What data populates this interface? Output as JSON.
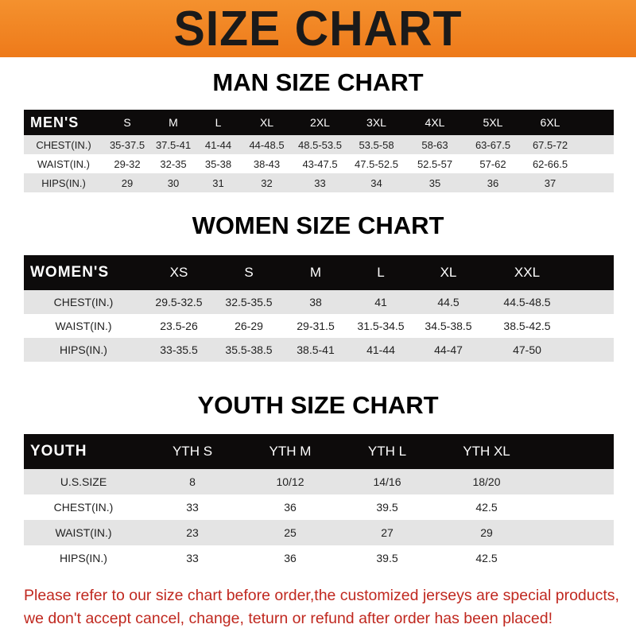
{
  "title": "SIZE CHART",
  "colors": {
    "banner": "#f07f1e",
    "header_row": "#0d0b0b",
    "notice": "#c0281f"
  },
  "men": {
    "title": "MAN SIZE CHART",
    "header": [
      "MEN'S",
      "S",
      "M",
      "L",
      "XL",
      "2XL",
      "3XL",
      "4XL",
      "5XL",
      "6XL"
    ],
    "rows": [
      [
        "CHEST(IN.)",
        "35-37.5",
        "37.5-41",
        "41-44",
        "44-48.5",
        "48.5-53.5",
        "53.5-58",
        "58-63",
        "63-67.5",
        "67.5-72"
      ],
      [
        "WAIST(IN.)",
        "29-32",
        "32-35",
        "35-38",
        "38-43",
        "43-47.5",
        "47.5-52.5",
        "52.5-57",
        "57-62",
        "62-66.5"
      ],
      [
        "HIPS(IN.)",
        "29",
        "30",
        "31",
        "32",
        "33",
        "34",
        "35",
        "36",
        "37"
      ]
    ]
  },
  "women": {
    "title": "WOMEN SIZE CHART",
    "header": [
      "WOMEN'S",
      "XS",
      "S",
      "M",
      "L",
      "XL",
      "XXL"
    ],
    "rows": [
      [
        "CHEST(IN.)",
        "29.5-32.5",
        "32.5-35.5",
        "38",
        "41",
        "44.5",
        "44.5-48.5"
      ],
      [
        "WAIST(IN.)",
        "23.5-26",
        "26-29",
        "29-31.5",
        "31.5-34.5",
        "34.5-38.5",
        "38.5-42.5"
      ],
      [
        "HIPS(IN.)",
        "33-35.5",
        "35.5-38.5",
        "38.5-41",
        "41-44",
        "44-47",
        "47-50"
      ]
    ]
  },
  "youth": {
    "title": "YOUTH SIZE CHART",
    "header": [
      "YOUTH",
      "YTH S",
      "YTH M",
      "YTH L",
      "YTH XL"
    ],
    "rows": [
      [
        "U.S.SIZE",
        "8",
        "10/12",
        "14/16",
        "18/20"
      ],
      [
        "CHEST(IN.)",
        "33",
        "36",
        "39.5",
        "42.5"
      ],
      [
        "WAIST(IN.)",
        "23",
        "25",
        "27",
        "29"
      ],
      [
        "HIPS(IN.)",
        "33",
        "36",
        "39.5",
        "42.5"
      ]
    ]
  },
  "notice": [
    "Please refer to our size chart before order,the customized jerseys are special products,",
    "we don't accept cancel, change, teturn or refund after order has been placed!"
  ]
}
